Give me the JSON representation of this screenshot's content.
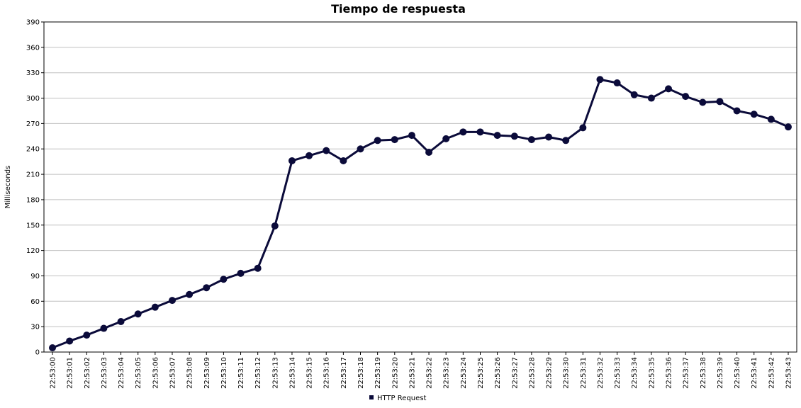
{
  "chart_data": {
    "type": "line",
    "title": "Tiempo de respuesta",
    "xlabel": "",
    "ylabel": "Milliseconds",
    "ylim": [
      0,
      390
    ],
    "yticks": [
      0,
      30,
      60,
      90,
      120,
      150,
      180,
      210,
      240,
      270,
      300,
      330,
      360,
      390
    ],
    "grid": true,
    "legend_position": "bottom",
    "categories": [
      "22:53:00",
      "22:53:01",
      "22:53:02",
      "22:53:03",
      "22:53:04",
      "22:53:05",
      "22:53:06",
      "22:53:07",
      "22:53:08",
      "22:53:09",
      "22:53:10",
      "22:53:11",
      "22:53:12",
      "22:53:13",
      "22:53:14",
      "22:53:15",
      "22:53:16",
      "22:53:17",
      "22:53:18",
      "22:53:19",
      "22:53:20",
      "22:53:21",
      "22:53:22",
      "22:53:23",
      "22:53:24",
      "22:53:25",
      "22:53:26",
      "22:53:27",
      "22:53:28",
      "22:53:29",
      "22:53:30",
      "22:53:31",
      "22:53:32",
      "22:53:33",
      "22:53:34",
      "22:53:35",
      "22:53:36",
      "22:53:37",
      "22:53:38",
      "22:53:39",
      "22:53:40",
      "22:53:41",
      "22:53:42",
      "22:53:43"
    ],
    "series": [
      {
        "name": "HTTP Request",
        "color": "#0b0b3a",
        "values": [
          5,
          13,
          20,
          28,
          36,
          45,
          53,
          61,
          68,
          76,
          86,
          93,
          99,
          149,
          226,
          232,
          238,
          226,
          240,
          250,
          251,
          256,
          236,
          252,
          260,
          260,
          256,
          255,
          251,
          254,
          250,
          265,
          322,
          318,
          304,
          300,
          311,
          302,
          295,
          296,
          285,
          281,
          275,
          266
        ]
      }
    ]
  }
}
